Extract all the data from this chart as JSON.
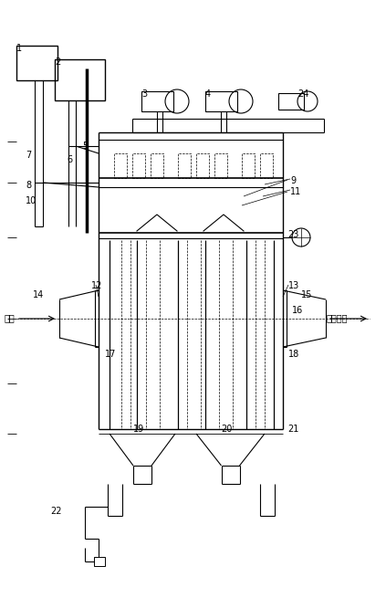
{
  "bg_color": "#ffffff",
  "line_color": "#000000",
  "figsize": [
    4.23,
    6.55
  ],
  "dpi": 100
}
